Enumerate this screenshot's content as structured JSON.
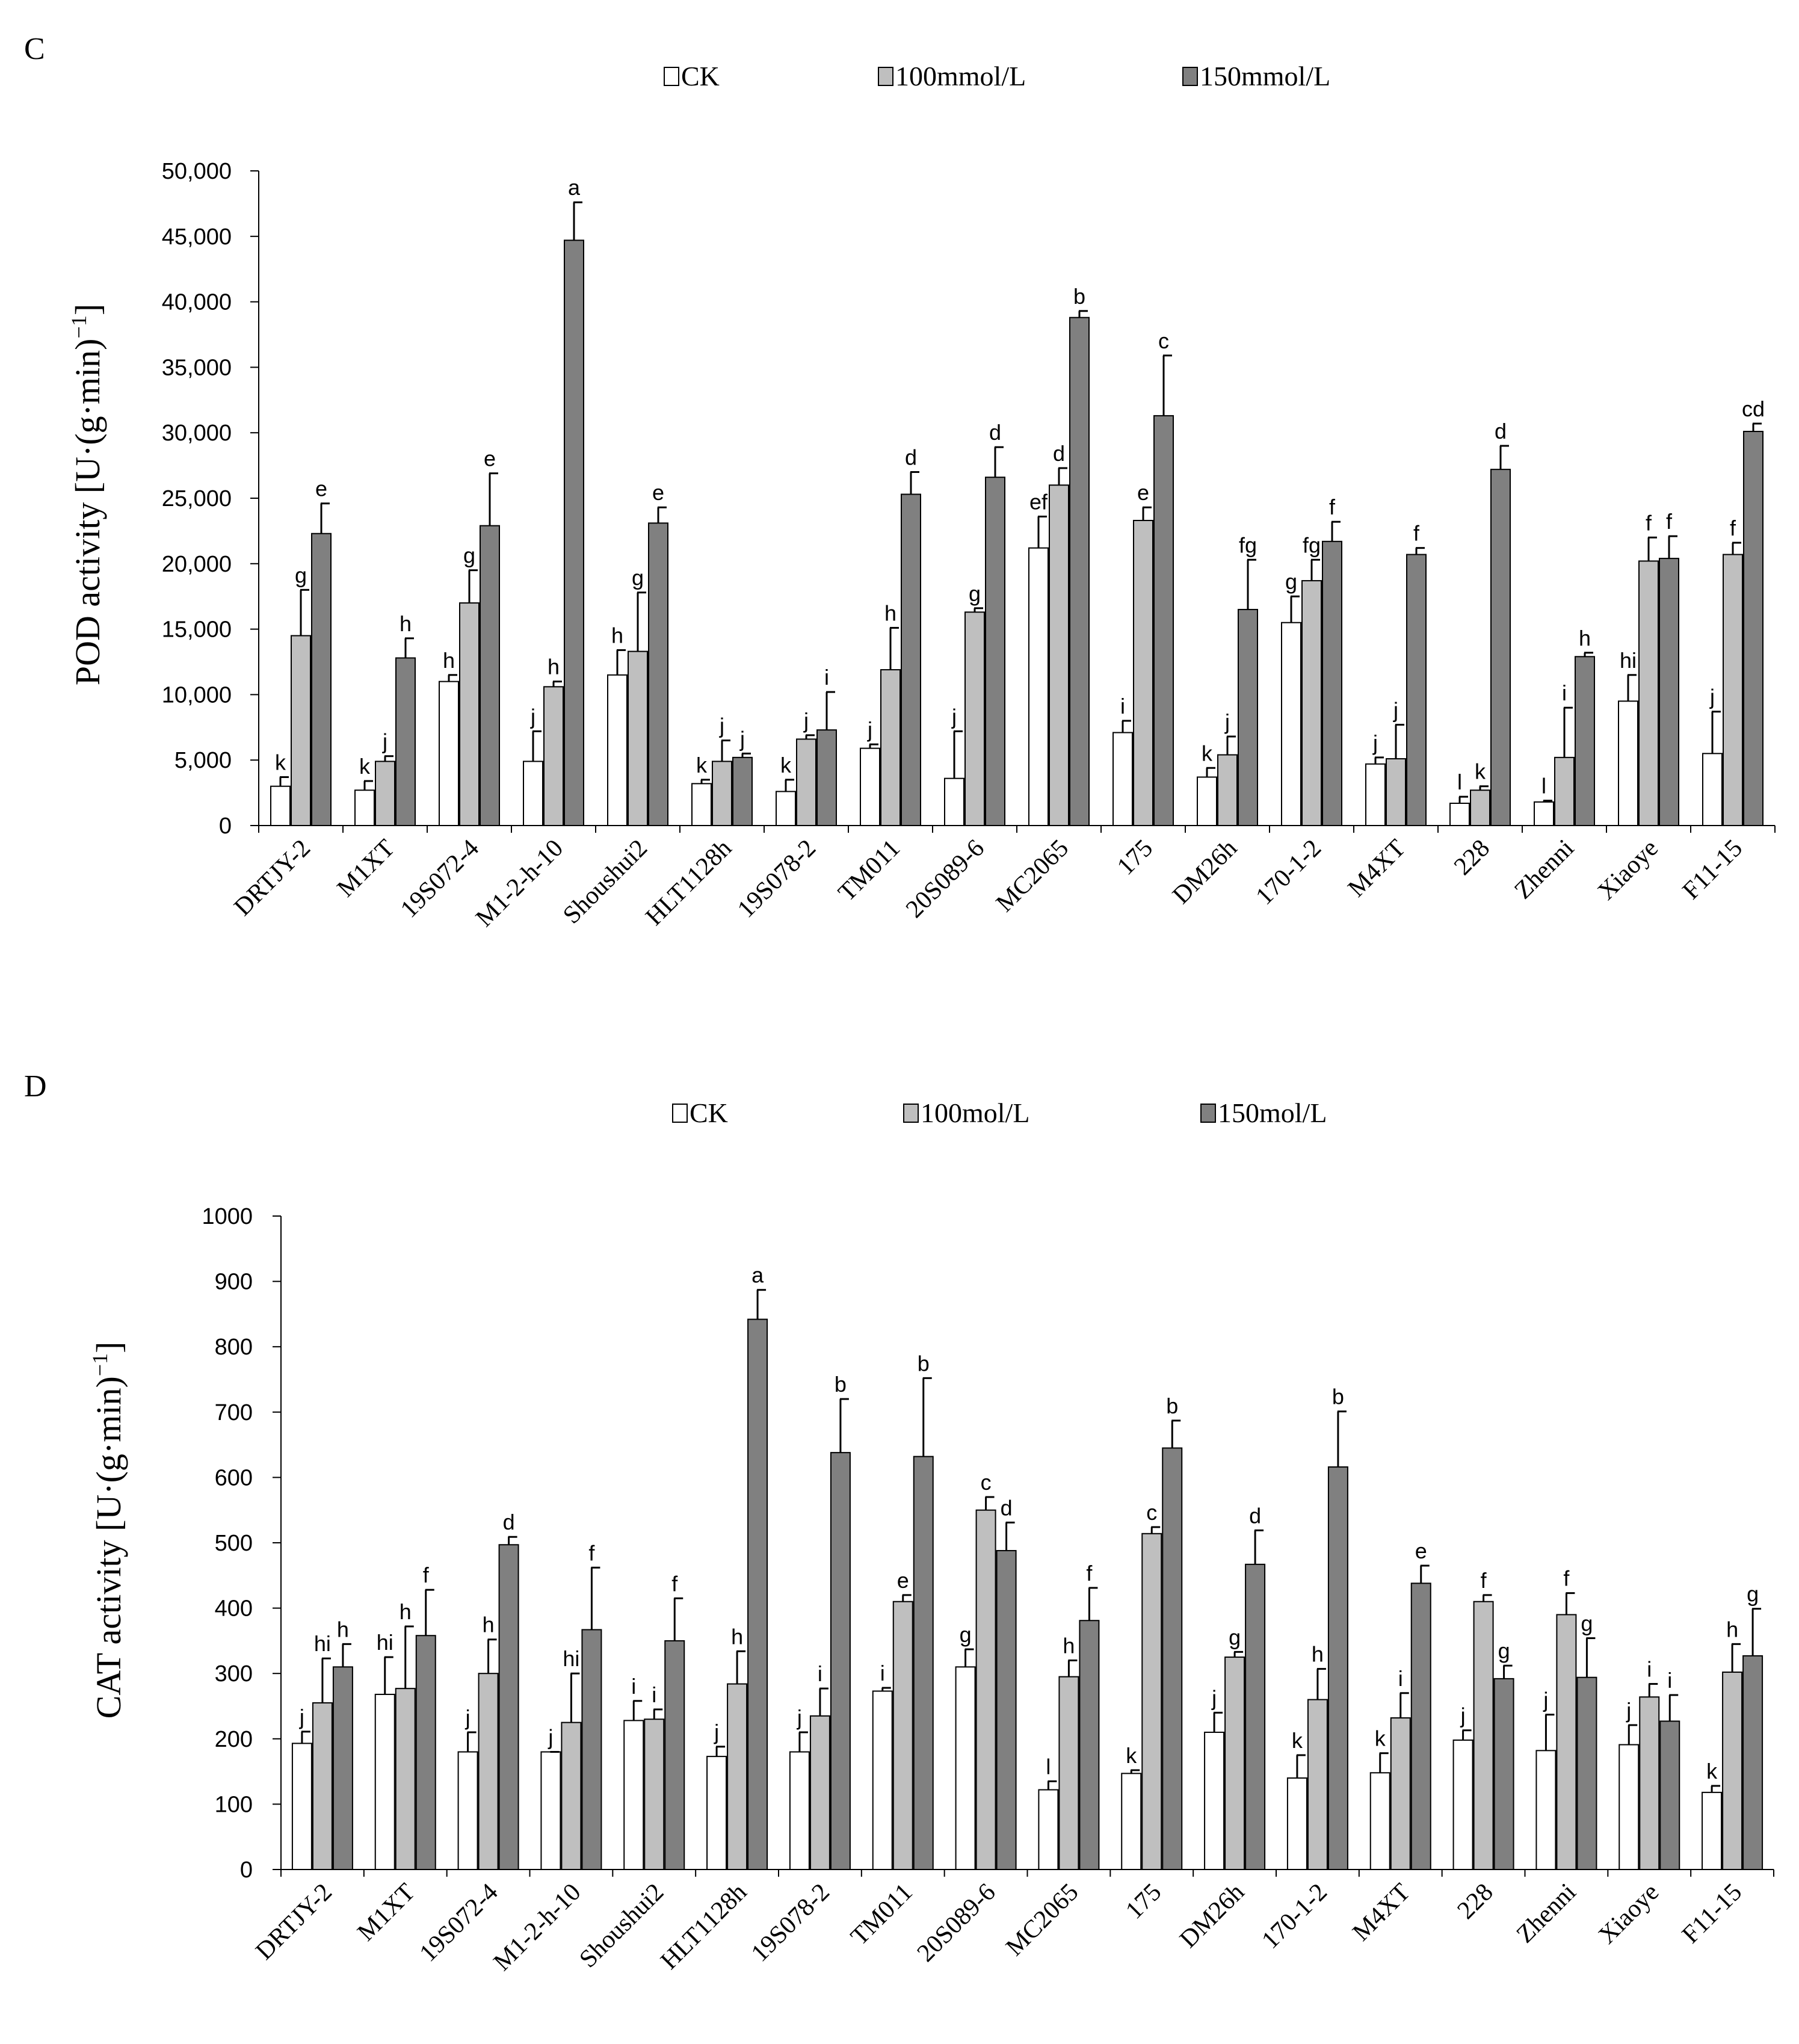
{
  "chart_data": [
    {
      "type": "bar",
      "panel": "C",
      "title": "",
      "xlabel": "",
      "ylabel": "POD activity  [U·(g·min)",
      "ylabel_sup": "−1",
      "ylabel_close": "]",
      "ylim": [
        0,
        50000
      ],
      "y_ticks": [
        "0",
        "5,000",
        "10,000",
        "15,000",
        "20,000",
        "25,000",
        "30,000",
        "35,000",
        "40,000",
        "45,000",
        "50,000"
      ],
      "legend_position": "top",
      "categories": [
        "DRTJY-2",
        "M1XT",
        "19S072-4",
        "M1-2-h-10",
        "Shoushui2",
        "HLT1128h",
        "19S078-2",
        "TM011",
        "20S089-6",
        "MC2065",
        "175",
        "DM26h",
        "170-1-2",
        "M4XT",
        "228",
        "Zhenni",
        "Xiaoye",
        "F11-15"
      ],
      "series": [
        {
          "name": "CK",
          "color": "#ffffff",
          "values": [
            3000,
            2700,
            11000,
            4900,
            11500,
            3200,
            2600,
            5900,
            3600,
            21200,
            7100,
            3700,
            15500,
            4700,
            1700,
            1800,
            9500,
            5500
          ],
          "errors": [
            700,
            700,
            500,
            2300,
            1900,
            300,
            900,
            300,
            3600,
            2400,
            900,
            700,
            2000,
            500,
            500,
            100,
            2000,
            3200
          ],
          "labels": [
            "k",
            "k",
            "h",
            "j",
            "h",
            "k",
            "k",
            "j",
            "j",
            "ef",
            "i",
            "k",
            "g",
            "j",
            "l",
            "l",
            "hi",
            "j"
          ]
        },
        {
          "name": "100mmol/L",
          "color": "#bfbfbf",
          "values": [
            14500,
            4900,
            17000,
            10600,
            13300,
            4900,
            6600,
            11900,
            16300,
            26000,
            23300,
            5400,
            18700,
            5100,
            2700,
            5200,
            20200,
            20700
          ],
          "errors": [
            3500,
            400,
            2500,
            400,
            4500,
            1600,
            300,
            3200,
            300,
            1300,
            1000,
            1400,
            1600,
            2600,
            300,
            3800,
            1800,
            900
          ],
          "labels": [
            "g",
            "j",
            "g",
            "h",
            "g",
            "j",
            "j",
            "h",
            "g",
            "d",
            "e",
            "j",
            "fg",
            "j",
            "k",
            "i",
            "f",
            "f"
          ]
        },
        {
          "name": "150mmol/L",
          "color": "#808080",
          "values": [
            22300,
            12800,
            22900,
            44700,
            23100,
            5200,
            7300,
            25300,
            26600,
            38800,
            31300,
            16500,
            21700,
            20700,
            27200,
            12900,
            20400,
            30100
          ],
          "errors": [
            2300,
            1500,
            4000,
            2900,
            1200,
            300,
            2900,
            1700,
            2300,
            500,
            4600,
            3800,
            1500,
            500,
            1800,
            300,
            1700,
            600
          ],
          "labels": [
            "e",
            "h",
            "e",
            "a",
            "e",
            "j",
            "i",
            "d",
            "d",
            "b",
            "c",
            "fg",
            "f",
            "f",
            "d",
            "h",
            "f",
            "cd"
          ]
        }
      ]
    },
    {
      "type": "bar",
      "panel": "D",
      "title": "",
      "xlabel": "",
      "ylabel": "CAT activity  [U·(g·min)",
      "ylabel_sup": "−1",
      "ylabel_close": "]",
      "ylim": [
        0,
        1000
      ],
      "y_ticks": [
        "0",
        "100",
        "200",
        "300",
        "400",
        "500",
        "600",
        "700",
        "800",
        "900",
        "1000"
      ],
      "legend_position": "top",
      "categories": [
        "DRTJY-2",
        "M1XT",
        "19S072-4",
        "M1-2-h-10",
        "Shoushui2",
        "HLT1128h",
        "19S078-2",
        "TM011",
        "20S089-6",
        "MC2065",
        "175",
        "DM26h",
        "170-1-2",
        "M4XT",
        "228",
        "Zhenni",
        "Xiaoye",
        "F11-15"
      ],
      "series": [
        {
          "name": "CK",
          "color": "#ffffff",
          "values": [
            193,
            268,
            180,
            180,
            228,
            173,
            180,
            273,
            310,
            122,
            147,
            210,
            140,
            148,
            198,
            182,
            191,
            118
          ],
          "errors": [
            18,
            57,
            30,
            0,
            30,
            15,
            30,
            5,
            27,
            13,
            5,
            30,
            35,
            30,
            15,
            55,
            30,
            10
          ],
          "labels": [
            "j",
            "hi",
            "j",
            "j",
            "i",
            "j",
            "j",
            "i",
            "g",
            "l",
            "k",
            "j",
            "k",
            "k",
            "j",
            "j",
            "j",
            "k"
          ]
        },
        {
          "name": "100mol/L",
          "color": "#bfbfbf",
          "values": [
            255,
            277,
            300,
            225,
            230,
            284,
            235,
            410,
            550,
            295,
            514,
            325,
            260,
            232,
            410,
            390,
            264,
            302
          ],
          "errors": [
            68,
            95,
            52,
            75,
            15,
            50,
            42,
            10,
            20,
            25,
            10,
            8,
            47,
            38,
            10,
            33,
            20,
            43
          ],
          "labels": [
            "hi",
            "h",
            "h",
            "hi",
            "i",
            "h",
            "i",
            "e",
            "c",
            "h",
            "c",
            "g",
            "h",
            "i",
            "f",
            "f",
            "i",
            "h"
          ]
        },
        {
          "name": "150mol/L",
          "color": "#808080",
          "values": [
            310,
            358,
            497,
            367,
            350,
            842,
            638,
            632,
            488,
            381,
            645,
            467,
            616,
            438,
            292,
            294,
            227,
            327
          ],
          "errors": [
            35,
            70,
            12,
            95,
            65,
            45,
            82,
            120,
            43,
            50,
            42,
            52,
            85,
            27,
            20,
            60,
            40,
            72
          ],
          "labels": [
            "h",
            "f",
            "d",
            "f",
            "f",
            "a",
            "b",
            "b",
            "d",
            "f",
            "b",
            "d",
            "b",
            "e",
            "g",
            "g",
            "i",
            "g"
          ]
        }
      ]
    }
  ]
}
